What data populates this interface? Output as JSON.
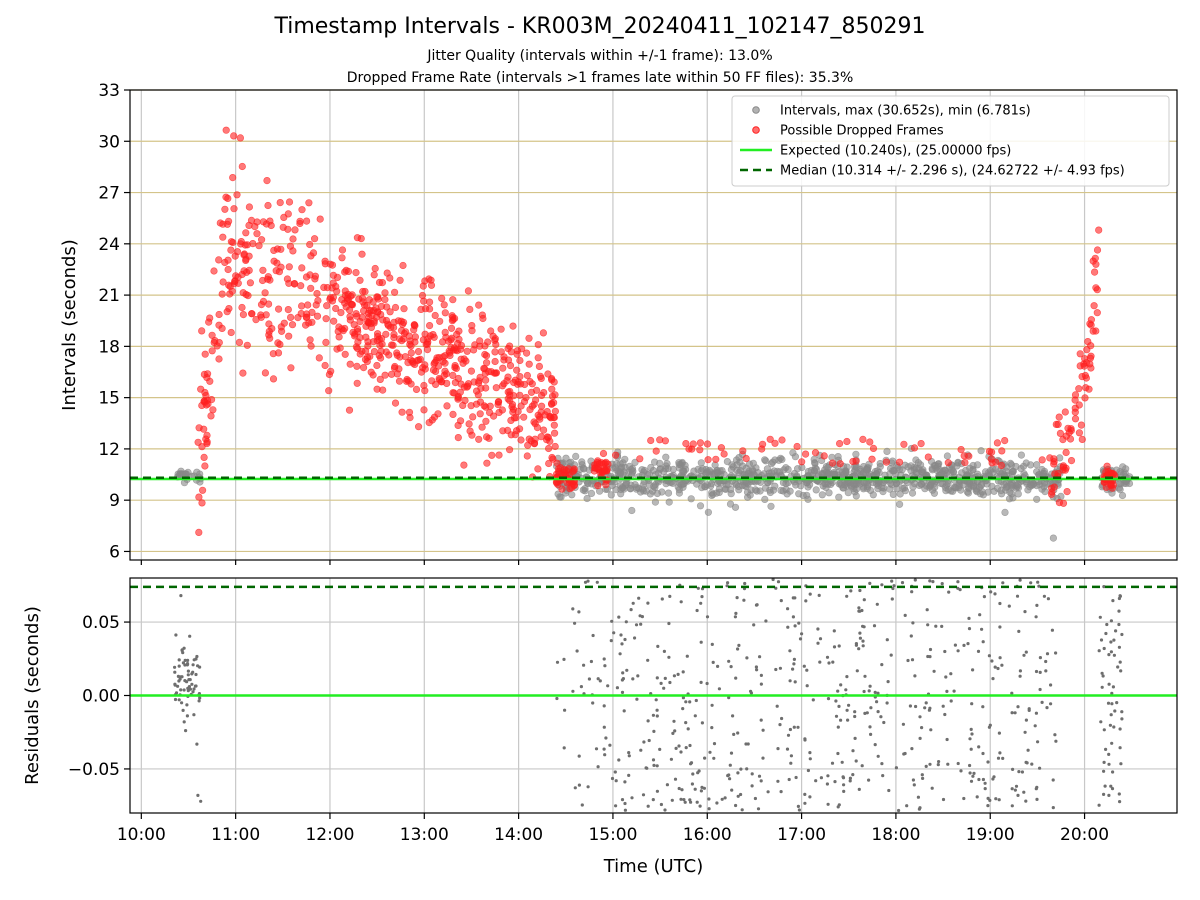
{
  "chart_data": [
    {
      "type": "scatter",
      "panel": "top",
      "title": "Timestamp Intervals - KR003M_20240411_102147_850291",
      "subtitle_lines": [
        "Jitter Quality (intervals within +/-1 frame): 13.0%",
        "Dropped Frame Rate (intervals >1 frames late within 50 FF files): 35.3%"
      ],
      "xlabel": "",
      "ylabel": "Intervals (seconds)",
      "ylim": [
        5.5,
        33
      ],
      "yticks": [
        6,
        9,
        12,
        15,
        18,
        21,
        24,
        27,
        30,
        33
      ],
      "ytick_labels": [
        "6",
        "9",
        "12",
        "15",
        "18",
        "21",
        "24",
        "27",
        "30",
        "33"
      ],
      "xlim_hours": [
        9.88,
        20.98
      ],
      "grid": true,
      "legend_position": "top-right",
      "legend": [
        {
          "label": "Intervals, max (30.652s), min (6.781s)",
          "marker": "circle",
          "color": "#888888"
        },
        {
          "label": "Possible Dropped Frames",
          "marker": "circle",
          "color": "#ff2020"
        },
        {
          "label": "Expected (10.240s), (25.00000 fps)",
          "marker": "line",
          "color": "#22ee22"
        },
        {
          "label": "Median (10.314 +/- 2.296 s), (24.62722 +/- 4.93 fps)",
          "marker": "dashed-line",
          "color": "#006600"
        }
      ],
      "expected_interval": 10.24,
      "median_interval": 10.314,
      "max_interval": 30.652,
      "min_interval": 6.781,
      "series_summary": [
        {
          "name": "Intervals",
          "x_hours_range": [
            10.38,
            20.48
          ],
          "typical_y": 10.3,
          "spread": 0.8
        },
        {
          "name": "Possible Dropped Frames",
          "segments": [
            {
              "x_hours": [
                10.6,
                10.9
              ],
              "y_rising": [
                10.5,
                26.0
              ]
            },
            {
              "x_hours": [
                10.9,
                12.0
              ],
              "y_center": 22.5,
              "spread": 3.2
            },
            {
              "x_hours": [
                12.0,
                14.4
              ],
              "y_center_start": 20.5,
              "y_center_end": 13.5,
              "spread": 2.5
            },
            {
              "x_hours": [
                14.4,
                19.6
              ],
              "y_center": 10.4,
              "spread": 0.5,
              "sparse_high_up_to": 12.8
            },
            {
              "x_hours": [
                19.6,
                20.15
              ],
              "y_rising": [
                10.5,
                24.8
              ]
            },
            {
              "x_hours": [
                20.2,
                20.3
              ],
              "y_center": 10.4,
              "spread": 0.3
            }
          ]
        }
      ]
    },
    {
      "type": "scatter",
      "panel": "bottom",
      "xlabel": "Time (UTC)",
      "ylabel": "Residuals (seconds)",
      "ylim": [
        -0.08,
        0.08
      ],
      "yticks": [
        -0.05,
        0.0,
        0.05
      ],
      "ytick_labels": [
        "−0.05",
        "0.00",
        "0.05"
      ],
      "xticks_hours": [
        10,
        11,
        12,
        13,
        14,
        15,
        16,
        17,
        18,
        19,
        20
      ],
      "xtick_labels": [
        "10:00",
        "11:00",
        "12:00",
        "13:00",
        "14:00",
        "15:00",
        "16:00",
        "17:00",
        "18:00",
        "19:00",
        "20:00"
      ],
      "grid": true,
      "expected_residual": 0.0,
      "median_residual": 0.074,
      "series_summary": [
        {
          "name": "Residuals",
          "segments": [
            {
              "x_hours": [
                10.35,
                10.62
              ],
              "y_center": 0.01,
              "spread": 0.03
            },
            {
              "x_hours": [
                14.4,
                19.7
              ],
              "y_center": 0.0,
              "spread": 0.08
            },
            {
              "x_hours": [
                20.15,
                20.4
              ],
              "y_center": 0.0,
              "spread": 0.08
            }
          ]
        }
      ]
    }
  ],
  "colors": {
    "intervals": "#888888",
    "dropped": "#ff2020",
    "expected": "#22ee22",
    "median": "#006600",
    "hgrid_top": "#d4c48a",
    "grid": "#c8c8c8"
  }
}
